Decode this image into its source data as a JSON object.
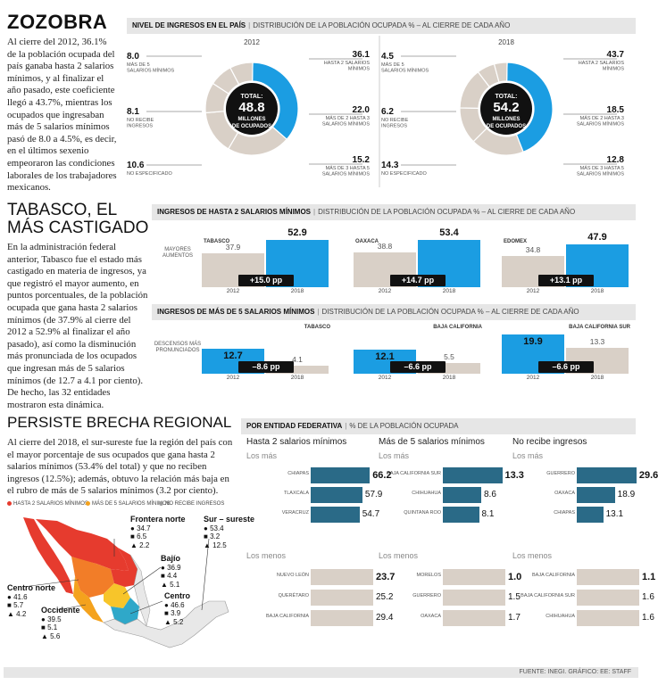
{
  "zozobra": {
    "title": "ZOZOBRA",
    "body": "Al cierre del 2012, 36.1% de la población ocupada del país ganaba hasta 2 salarios mínimos, y al finalizar el año pasado, este coeficiente llegó a 43.7%, mientras los ocupados que ingresaban más de 5 salarios mínimos pasó de 8.0 a 4.5%, es decir, en el últimos sexenio empeoraron las condiciones laborales de los trabajadores mexicanos."
  },
  "tabasco": {
    "title1": "TABASCO, EL",
    "title2": "MÁS CASTIGADO",
    "body": "En la administración federal anterior, Tabasco fue el estado más castigado en materia de ingresos, ya que registró el mayor aumento, en puntos porcentuales, de la población ocupada que gana hasta 2 salarios mínimos (de 37.9% al cierre del 2012 a 52.9% al finalizar el año pasado), así como la disminución más pronunciada de los ocupados que ingresan más de 5 salarios mínimos (de 12.7 a 4.1 por ciento). De hecho, las 32 entidades mostraron esta dinámica."
  },
  "brecha": {
    "title": "PERSISTE BRECHA REGIONAL",
    "body": "Al cierre del 2018, el sur-sureste fue la región del país con el mayor porcentaje de sus ocupados que gana hasta 2 salarios mínimos (53.4% del total) y que no reciben ingresos (12.5%); además, obtuvo la relación más baja en el rubro de más de 5 salarios mínimos (3.2 por ciento)."
  },
  "headers": {
    "nivel_bold": "NIVEL DE INGRESOS EN EL PAÍS",
    "nivel_rest": "DISTRIBUCIÓN DE LA POBLACIÓN OCUPADA % – AL CIERRE DE CADA AÑO",
    "hasta2_bold": "INGRESOS DE HASTA 2 SALARIOS MÍNIMOS",
    "hasta2_rest": "DISTRIBUCIÓN DE LA POBLACIÓN OCUPADA % – AL CIERRE DE CADA AÑO",
    "mas5_bold": "INGRESOS DE MÁS DE 5 SALARIOS MÍNIMOS",
    "mas5_rest": "DISTRIBUCIÓN DE LA POBLACIÓN OCUPADA % – AL CIERRE DE CADA AÑO",
    "entidad_bold": "POR ENTIDAD FEDERATIVA",
    "entidad_rest": "% DE LA POBLACIÓN OCUPADA"
  },
  "donut_common": {
    "total_label": "TOTAL:",
    "millones": "MILLONES",
    "ocupados": "DE OCUPADOS"
  },
  "footer": "FUENTE: INEGI. GRÁFICO: EE: STAFF",
  "map_legend": {
    "a": "HASTA 2 SALARIOS MÍNIMOS",
    "b": "MÁS DE 5 SALARIOS MÍNIMOS",
    "c": "NO RECIBE INGRESOS"
  },
  "regions": [
    {
      "name": "Frontera norte",
      "v1": "34.7",
      "v2": "6.5",
      "v3": "2.2"
    },
    {
      "name": "Sur – sureste",
      "v1": "53.4",
      "v2": "3.2",
      "v3": "12.5"
    },
    {
      "name": "Bajío",
      "v1": "36.9",
      "v2": "4.4",
      "v3": "5.1"
    },
    {
      "name": "Centro norte",
      "v1": "41.6",
      "v2": "5.7",
      "v3": "4.2"
    },
    {
      "name": "Centro",
      "v1": "46.6",
      "v2": "3.9",
      "v3": "5.2"
    },
    {
      "name": "Occidente",
      "v1": "39.5",
      "v2": "5.1",
      "v3": "5.6"
    }
  ],
  "chart_data": [
    {
      "type": "pie",
      "title": "2012",
      "total": "48.8",
      "slices": [
        {
          "value": 36.1,
          "label": "HASTA 2 SALARIOS MÍNIMOS",
          "color": "#1b9de2"
        },
        {
          "value": 22.0,
          "label": "MÁS DE 2 HASTA 3 SALARIOS MÍNIMOS",
          "color": "#d9d0c7"
        },
        {
          "value": 15.2,
          "label": "MÁS DE 3 HASTA 5 SALARIOS MÍNIMOS",
          "color": "#d9d0c7"
        },
        {
          "value": 10.6,
          "label": "NO ESPECIFICADO",
          "color": "#d9d0c7"
        },
        {
          "value": 8.1,
          "label": "NO RECIBE INGRESOS",
          "color": "#d9d0c7"
        },
        {
          "value": 8.0,
          "label": "MÁS DE 5 SALARIOS MÍNIMOS",
          "color": "#d9d0c7"
        }
      ]
    },
    {
      "type": "pie",
      "title": "2018",
      "total": "54.2",
      "slices": [
        {
          "value": 43.7,
          "label": "HASTA 2 SALARIOS MÍNIMOS",
          "color": "#1b9de2"
        },
        {
          "value": 18.5,
          "label": "MÁS DE 2 HASTA 3 SALARIOS MÍNIMOS",
          "color": "#d9d0c7"
        },
        {
          "value": 12.8,
          "label": "MÁS DE 3 HASTA 5 SALARIOS MÍNIMOS",
          "color": "#d9d0c7"
        },
        {
          "value": 14.3,
          "label": "NO ESPECIFICADO",
          "color": "#d9d0c7"
        },
        {
          "value": 6.2,
          "label": "NO RECIBE INGRESOS",
          "color": "#d9d0c7"
        },
        {
          "value": 4.5,
          "label": "MÁS DE 5 SALARIOS MÍNIMOS",
          "color": "#d9d0c7"
        }
      ]
    },
    {
      "type": "bar",
      "title": "INGRESOS DE HASTA 2 SALARIOS MÍNIMOS",
      "annotation": "MAYORES AUMENTOS",
      "categories": [
        "2012",
        "2018"
      ],
      "panels": [
        {
          "state": "TABASCO",
          "v2012": 37.9,
          "v2018": 52.9,
          "diff": "+15.0 pp"
        },
        {
          "state": "OAXACA",
          "v2012": 38.8,
          "v2018": 53.4,
          "diff": "+14.7 pp"
        },
        {
          "state": "EDOMEX",
          "v2012": 34.8,
          "v2018": 47.9,
          "diff": "+13.1 pp"
        }
      ]
    },
    {
      "type": "bar",
      "title": "INGRESOS DE MÁS DE 5 SALARIOS MÍNIMOS",
      "annotation": "DESCENSOS MÁS PRONUNCIADOS",
      "categories": [
        "2012",
        "2018"
      ],
      "panels": [
        {
          "state": "TABASCO",
          "v2012": 12.7,
          "v2018": 4.1,
          "diff": "–8.6 pp"
        },
        {
          "state": "BAJA CALIFORNIA",
          "v2012": 12.1,
          "v2018": 5.5,
          "diff": "–6.6 pp"
        },
        {
          "state": "BAJA CALIFORNIA SUR",
          "v2012": 19.9,
          "v2018": 13.3,
          "diff": "–6.6 pp"
        }
      ]
    },
    {
      "type": "bar",
      "title": "POR ENTIDAD FEDERATIVA",
      "columns": [
        {
          "name": "Hasta 2 salarios mínimos",
          "max": 70,
          "mas": [
            {
              "label": "CHIAPAS",
              "value": 66.2
            },
            {
              "label": "TLAXCALA",
              "value": 57.9
            },
            {
              "label": "VERACRUZ",
              "value": 54.7
            }
          ],
          "menos": [
            {
              "label": "NUEVO LEÓN",
              "value": 23.7
            },
            {
              "label": "QUERÉTARO",
              "value": 25.2
            },
            {
              "label": "BAJA CALIFORNIA",
              "value": 29.4
            }
          ]
        },
        {
          "name": "Más de 5 salarios mínimos",
          "max": 14,
          "mas": [
            {
              "label": "BAJA CALIFORNIA SUR",
              "value": 13.3
            },
            {
              "label": "CHIHUAHUA",
              "value": 8.6
            },
            {
              "label": "QUINTANA ROO",
              "value": 8.1
            }
          ],
          "menos": [
            {
              "label": "MORELOS",
              "value": 1.0
            },
            {
              "label": "GUERRERO",
              "value": 1.5
            },
            {
              "label": "OAXACA",
              "value": 1.7
            }
          ]
        },
        {
          "name": "No recibe ingresos",
          "max": 31,
          "mas": [
            {
              "label": "GUERRERO",
              "value": 29.6
            },
            {
              "label": "OAXACA",
              "value": 18.9
            },
            {
              "label": "CHIAPAS",
              "value": 13.1
            }
          ],
          "menos": [
            {
              "label": "BAJA CALIFORNIA",
              "value": 1.1
            },
            {
              "label": "BAJA CALIFORNIA SUR",
              "value": 1.6
            },
            {
              "label": "CHIHUAHUA",
              "value": 1.6
            }
          ]
        }
      ],
      "group_mas": "Los más",
      "group_menos": "Los menos"
    }
  ]
}
